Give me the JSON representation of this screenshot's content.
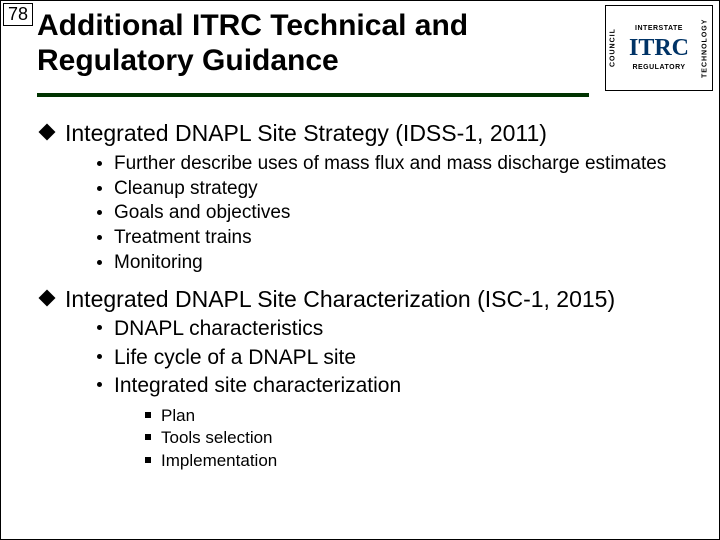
{
  "page_number": "78",
  "title": "Additional ITRC Technical and Regulatory Guidance",
  "logo": {
    "left": "COUNCIL",
    "top": "INTERSTATE",
    "main": "ITRC",
    "right": "TECHNOLOGY",
    "bottom": "REGULATORY"
  },
  "sections": [
    {
      "heading": "Integrated DNAPL Site Strategy (IDSS-1, 2011)",
      "sub_style": "small",
      "items": [
        "Further describe uses of mass flux and mass discharge estimates",
        "Cleanup strategy",
        "Goals and objectives",
        "Treatment trains",
        "Monitoring"
      ]
    },
    {
      "heading": "Integrated DNAPL Site Characterization (ISC-1, 2015)",
      "sub_style": "medium",
      "items": [
        "DNAPL characteristics",
        "Life cycle of a DNAPL site",
        "Integrated site characterization"
      ],
      "subsub": {
        "parent_index": 2,
        "items": [
          "Plan",
          "Tools selection",
          "Implementation"
        ]
      }
    }
  ]
}
